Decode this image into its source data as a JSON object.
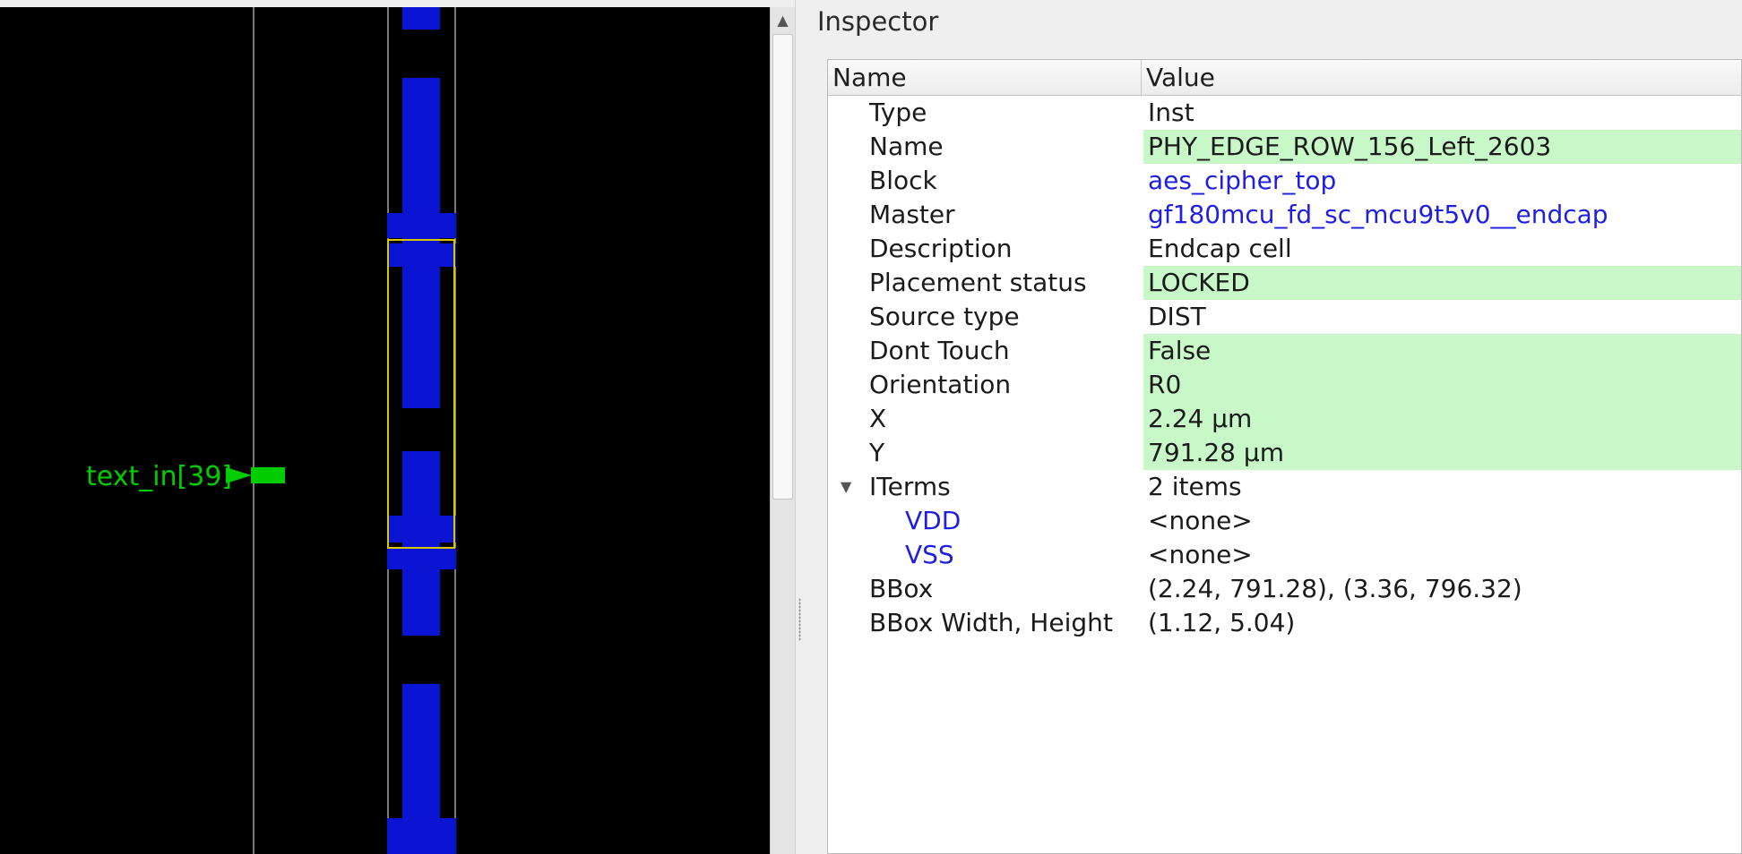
{
  "colors": {
    "canvas_bg": "#000000",
    "metal_blue": "#0a14d2",
    "selection_yellow": "#d8c800",
    "pin_green": "#00cc00",
    "editable_bg": "#c8f7c8",
    "link_blue": "#1f1fe0"
  },
  "layout_view": {
    "pin_label": "text_in[39]"
  },
  "scrollbar": {
    "up_icon": "arrow-up-icon"
  },
  "inspector": {
    "title": "Inspector",
    "columns": {
      "name": "Name",
      "value": "Value"
    },
    "rows": [
      {
        "name": "Type",
        "value": "Inst"
      },
      {
        "name": "Name",
        "value": "PHY_EDGE_ROW_156_Left_2603"
      },
      {
        "name": "Block",
        "value": "aes_cipher_top"
      },
      {
        "name": "Master",
        "value": "gf180mcu_fd_sc_mcu9t5v0__endcap"
      },
      {
        "name": "Description",
        "value": "Endcap cell"
      },
      {
        "name": "Placement status",
        "value": "LOCKED"
      },
      {
        "name": "Source type",
        "value": "DIST"
      },
      {
        "name": "Dont Touch",
        "value": "False"
      },
      {
        "name": "Orientation",
        "value": "R0"
      },
      {
        "name": "X",
        "value": "2.24 μm"
      },
      {
        "name": "Y",
        "value": "791.28 μm"
      },
      {
        "name": "ITerms",
        "value": "2 items"
      },
      {
        "name": "VDD",
        "value": "<none>"
      },
      {
        "name": "VSS",
        "value": "<none>"
      },
      {
        "name": "BBox",
        "value": "(2.24, 791.28), (3.36, 796.32)"
      },
      {
        "name": "BBox Width, Height",
        "value": "(1.12, 5.04)"
      }
    ]
  }
}
